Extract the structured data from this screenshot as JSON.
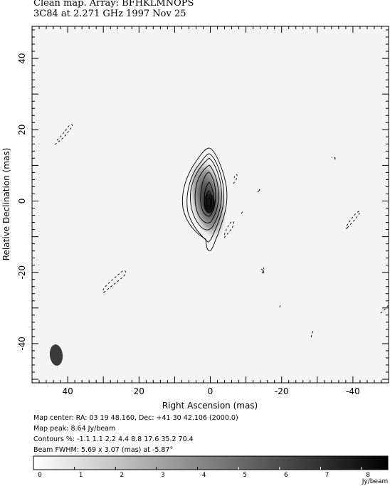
{
  "header": {
    "line1": "Clean map.  Array: BFHKLMNOPS",
    "line2": "3C84 at 2.271 GHz 1997 Nov 25"
  },
  "info": {
    "map_center": "Map center:  RA: 03 19 48.160,  Dec: +41 30 42.106 (2000.0)",
    "map_peak": "Map peak: 8.64 Jy/beam",
    "contours": "Contours %: -1.1 1.1 2.2 4.4 8.8 17.6 35.2 70.4",
    "beam": "Beam FWHM: 5.69 x 3.07 (mas) at -5.87°"
  },
  "colorbar": {
    "ticks": [
      "0",
      "1",
      "2",
      "3",
      "4",
      "5",
      "6",
      "7",
      "8"
    ],
    "unit": "Jy/beam",
    "min": 0,
    "max": 8.64
  },
  "chart_data": {
    "type": "contour",
    "xlabel": "Right Ascension  (mas)",
    "ylabel": "Relative Declination  (mas)",
    "xlim": [
      50,
      -50
    ],
    "ylim": [
      -51,
      49
    ],
    "xticks": [
      "40",
      "20",
      "0",
      "-20",
      "-40"
    ],
    "yticks": [
      "40",
      "20",
      "0",
      "-20",
      "-40"
    ],
    "peak_jy_per_beam": 8.64,
    "contour_levels_percent": [
      -1.1,
      1.1,
      2.2,
      4.4,
      8.8,
      17.6,
      35.2,
      70.4
    ],
    "beam": {
      "major_mas": 5.69,
      "minor_mas": 3.07,
      "pa_deg": -5.87,
      "x": 43,
      "y": -43
    }
  }
}
